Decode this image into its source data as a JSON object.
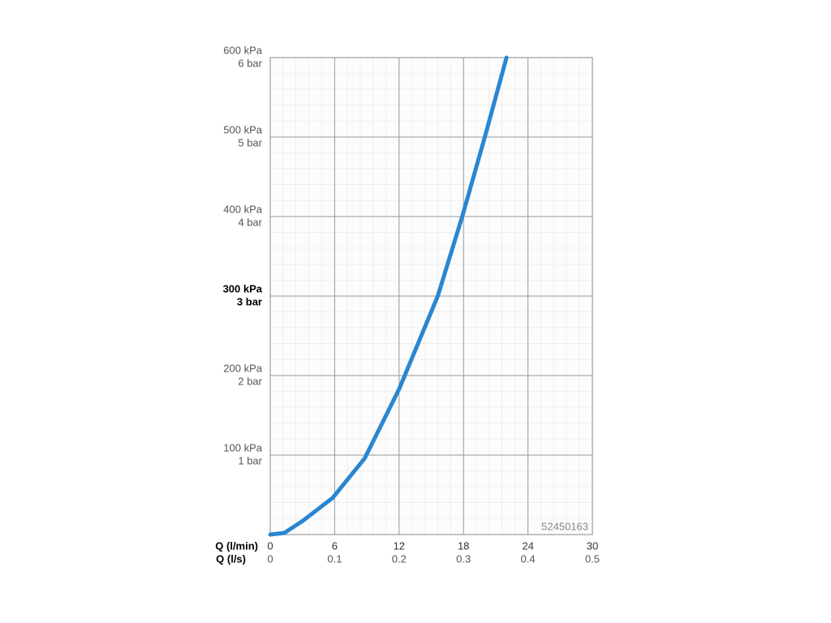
{
  "chart_data": {
    "type": "line",
    "x": [
      0,
      1.3,
      3,
      5.8,
      8.8,
      12,
      15.6,
      17.9,
      20,
      22
    ],
    "series": [
      {
        "color": "#2a86d1",
        "values": [
          0,
          2,
          17,
          46,
          96,
          183,
          300,
          401,
          501,
          600
        ]
      }
    ],
    "xlim": [
      0,
      30
    ],
    "xticks": [
      0,
      6,
      12,
      18,
      24,
      30
    ],
    "x2ticks": [
      0,
      0.1,
      0.2,
      0.3,
      0.4,
      0.5
    ],
    "xlabel": "Q (l/min)",
    "x2label": "Q (l/s)",
    "ylim": [
      0,
      600
    ],
    "yticks": [
      {
        "value": 100,
        "label": "100 kPa"
      },
      {
        "value": 200,
        "label": "200 kPa"
      },
      {
        "value": 300,
        "label": "300 kPa"
      },
      {
        "value": 400,
        "label": "400 kPa"
      },
      {
        "value": 500,
        "label": "500 kPa"
      },
      {
        "value": 600,
        "label": "600 kPa"
      }
    ],
    "ytick_bar_labels": [
      "1 bar",
      "2 bar",
      "3 bar",
      "4 bar",
      "5 bar",
      "6 bar"
    ],
    "highlight_ytick": 300,
    "grid": true,
    "annotation": "52450163"
  }
}
